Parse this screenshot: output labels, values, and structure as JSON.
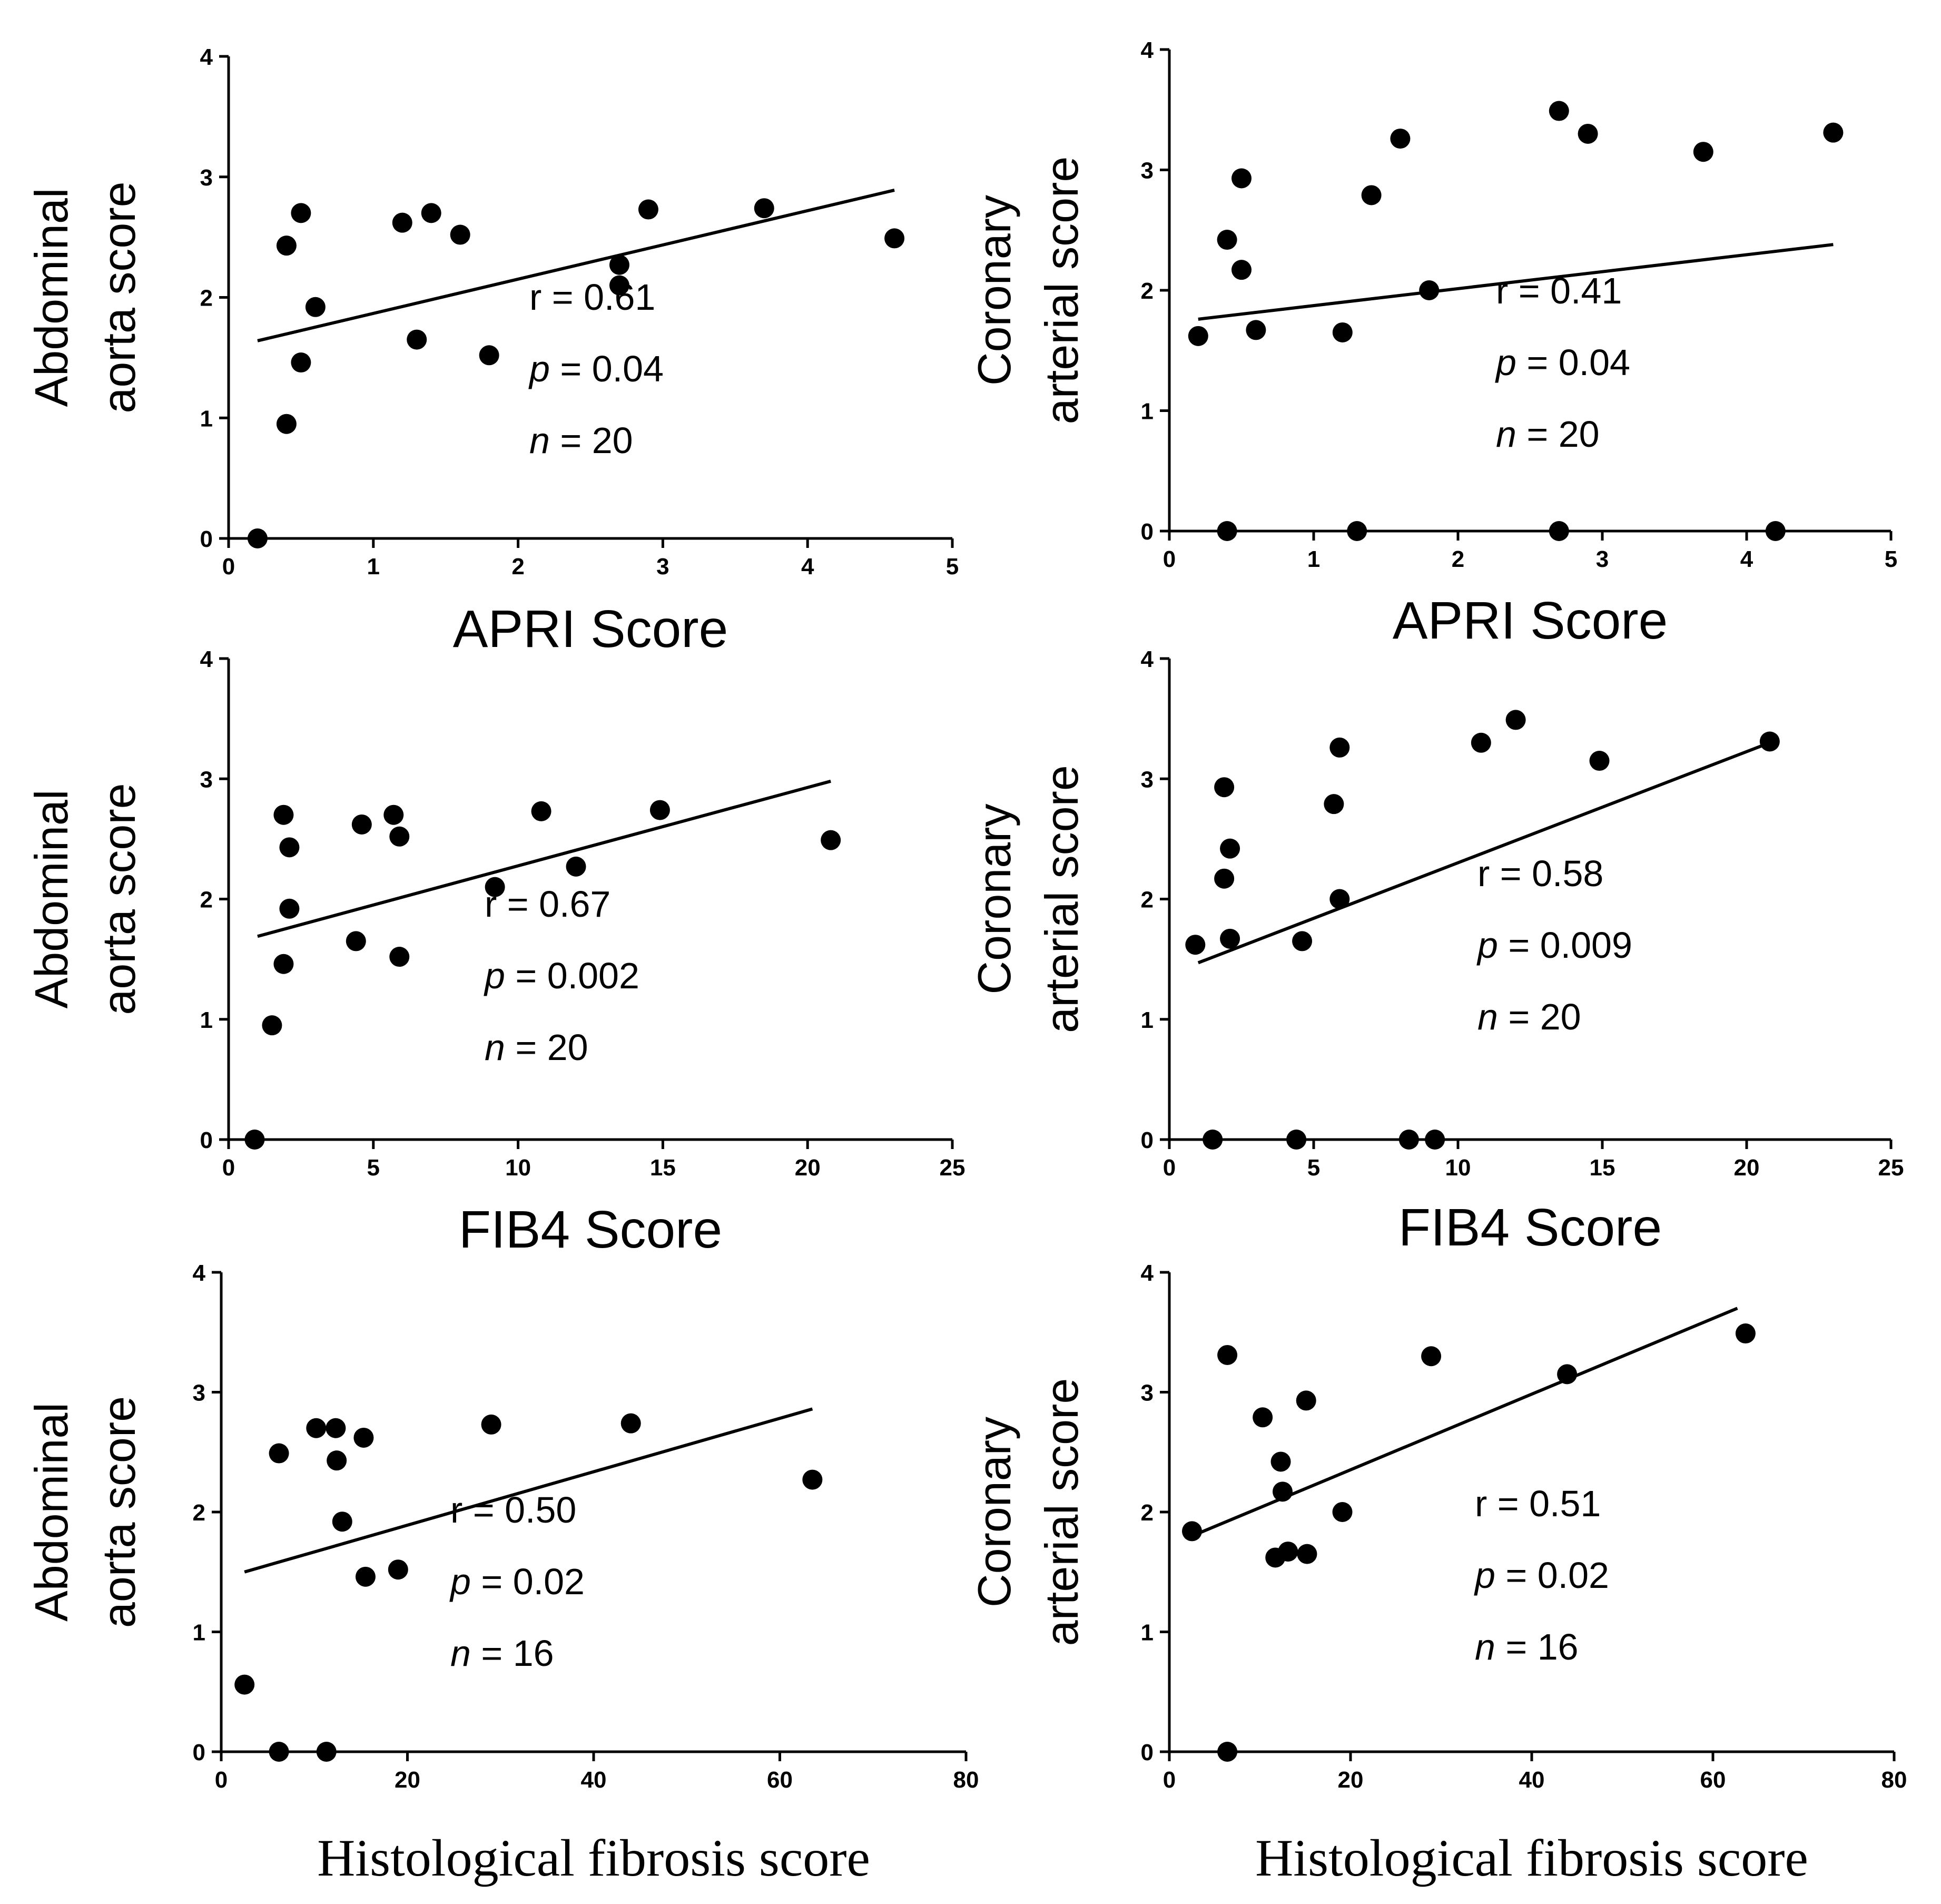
{
  "chart_data": [
    {
      "id": "p1",
      "type": "scatter",
      "ylabel_lines": [
        "Abdominal",
        "aorta score"
      ],
      "xlabel": "APRI  Score",
      "xlim": [
        0,
        5
      ],
      "ylim": [
        0,
        4
      ],
      "xticks": [
        0,
        1,
        2,
        3,
        4,
        5
      ],
      "yticks": [
        0,
        1,
        2,
        3,
        4
      ],
      "x": [
        0.2,
        0.4,
        0.4,
        0.5,
        0.5,
        0.6,
        1.2,
        1.3,
        1.4,
        1.6,
        1.8,
        2.7,
        2.7,
        2.9,
        3.7,
        4.6
      ],
      "y": [
        0.0,
        0.95,
        2.43,
        2.7,
        1.46,
        1.92,
        2.62,
        1.65,
        2.7,
        2.52,
        1.52,
        2.27,
        2.1,
        2.73,
        2.74,
        2.49
      ],
      "fit": {
        "x": [
          0.2,
          4.6
        ],
        "y": [
          1.64,
          2.89
        ]
      },
      "stats": {
        "r_label": "r = ",
        "r": "0.61",
        "p_label": "p",
        "p": " = 0.04",
        "n_label": "n",
        "n": " = 20"
      }
    },
    {
      "id": "p2",
      "type": "scatter",
      "ylabel_lines": [
        "Coronary",
        "arterial score"
      ],
      "xlabel": "APRI  Score",
      "xlim": [
        0,
        5
      ],
      "ylim": [
        0,
        4
      ],
      "xticks": [
        0,
        1,
        2,
        3,
        4,
        5
      ],
      "yticks": [
        0,
        1,
        2,
        3,
        4
      ],
      "x": [
        0.2,
        0.4,
        0.4,
        0.5,
        0.5,
        0.6,
        1.2,
        1.3,
        1.4,
        1.6,
        1.8,
        2.7,
        2.7,
        2.9,
        3.7,
        4.2,
        4.6
      ],
      "y": [
        1.62,
        0.0,
        2.42,
        2.93,
        2.17,
        1.67,
        1.65,
        0.0,
        2.79,
        3.26,
        2.0,
        3.49,
        0.0,
        3.3,
        3.15,
        0.0,
        3.31
      ],
      "fit": {
        "x": [
          0.2,
          4.6
        ],
        "y": [
          1.76,
          2.38
        ]
      },
      "stats": {
        "r_label": "r = ",
        "r": "0.41",
        "p_label": "p",
        "p": " = 0.04",
        "n_label": "n",
        "n": " = 20"
      }
    },
    {
      "id": "p3",
      "type": "scatter",
      "ylabel_lines": [
        "Abdominal",
        "aorta score"
      ],
      "xlabel": "FIB4  Score",
      "xlim": [
        0,
        25
      ],
      "ylim": [
        0,
        4
      ],
      "xticks": [
        0,
        5,
        10,
        15,
        20,
        25
      ],
      "yticks": [
        0,
        1,
        2,
        3,
        4
      ],
      "x": [
        0.9,
        1.5,
        1.9,
        1.9,
        2.1,
        2.1,
        4.4,
        4.6,
        5.7,
        5.9,
        5.9,
        9.2,
        10.8,
        12.0,
        14.9,
        20.8
      ],
      "y": [
        0.0,
        0.95,
        1.46,
        2.7,
        2.43,
        1.92,
        1.65,
        2.62,
        2.7,
        2.52,
        1.52,
        2.1,
        2.73,
        2.27,
        2.74,
        2.49
      ],
      "fit": {
        "x": [
          1.0,
          20.8
        ],
        "y": [
          1.69,
          2.98
        ]
      },
      "stats": {
        "r_label": "r = ",
        "r": "0.67",
        "p_label": "p",
        "p": " = 0.002",
        "n_label": "n",
        "n": " = 20"
      }
    },
    {
      "id": "p4",
      "type": "scatter",
      "ylabel_lines": [
        "Coronary",
        "arterial score"
      ],
      "xlabel": "FIB4  Score",
      "xlim": [
        0,
        25
      ],
      "ylim": [
        0,
        4
      ],
      "xticks": [
        0,
        5,
        10,
        15,
        20,
        25
      ],
      "yticks": [
        0,
        1,
        2,
        3,
        4
      ],
      "x": [
        0.9,
        1.5,
        1.9,
        1.9,
        2.1,
        2.1,
        4.4,
        4.6,
        5.7,
        5.9,
        5.9,
        8.3,
        9.2,
        10.8,
        12.0,
        14.9,
        20.8
      ],
      "y": [
        1.62,
        0.0,
        2.93,
        2.17,
        2.42,
        1.67,
        0.0,
        1.65,
        2.79,
        3.26,
        2.0,
        0.0,
        0.0,
        3.3,
        3.49,
        3.15,
        3.31
      ],
      "fit": {
        "x": [
          1.0,
          20.8
        ],
        "y": [
          1.47,
          3.3
        ]
      },
      "stats": {
        "r_label": "r = ",
        "r": "0.58",
        "p_label": "p",
        "p": " = 0.009",
        "n_label": "n",
        "n": " = 20"
      }
    },
    {
      "id": "p5",
      "type": "scatter",
      "ylabel_lines": [
        "Abdominal",
        "aorta score"
      ],
      "xlabel": "Histological fibrosis score",
      "xlim": [
        0,
        80
      ],
      "ylim": [
        0,
        4
      ],
      "xticks": [
        0,
        20,
        40,
        60,
        80
      ],
      "yticks": [
        0,
        1,
        2,
        3,
        4
      ],
      "x": [
        2.5,
        6.2,
        6.2,
        10.2,
        11.3,
        12.3,
        12.4,
        13.0,
        15.3,
        15.5,
        19.0,
        29.0,
        44.0,
        63.5
      ],
      "y": [
        0.56,
        2.49,
        0.0,
        2.7,
        0.0,
        2.7,
        2.43,
        1.92,
        2.62,
        1.46,
        1.52,
        2.73,
        2.74,
        2.27
      ],
      "fit": {
        "x": [
          2.5,
          63.5
        ],
        "y": [
          1.5,
          2.86
        ]
      },
      "stats": {
        "r_label": "r = ",
        "r": "0.50",
        "p_label": "p",
        "p": " = 0.02",
        "n_label": "n",
        "n": " = 16"
      }
    },
    {
      "id": "p6",
      "type": "scatter",
      "ylabel_lines": [
        "Coronary",
        "arterial score"
      ],
      "xlabel": "Histological fibrosis score",
      "xlim": [
        0,
        80
      ],
      "ylim": [
        0,
        4
      ],
      "xticks": [
        0,
        20,
        40,
        60,
        80
      ],
      "yticks": [
        0,
        1,
        2,
        3,
        4
      ],
      "x": [
        2.5,
        6.4,
        6.4,
        10.3,
        11.7,
        12.3,
        12.5,
        13.1,
        15.1,
        15.2,
        19.1,
        28.9,
        43.9,
        63.6
      ],
      "y": [
        1.84,
        0.0,
        3.31,
        2.79,
        1.62,
        2.42,
        2.17,
        1.67,
        2.93,
        1.65,
        2.0,
        3.3,
        3.15,
        3.49
      ],
      "fit": {
        "x": [
          2.5,
          62.7
        ],
        "y": [
          1.8,
          3.7
        ]
      },
      "stats": {
        "r_label": "r = ",
        "r": "0.51",
        "p_label": "p",
        "p": " = 0.02",
        "n_label": "n",
        "n": " = 16"
      }
    }
  ]
}
